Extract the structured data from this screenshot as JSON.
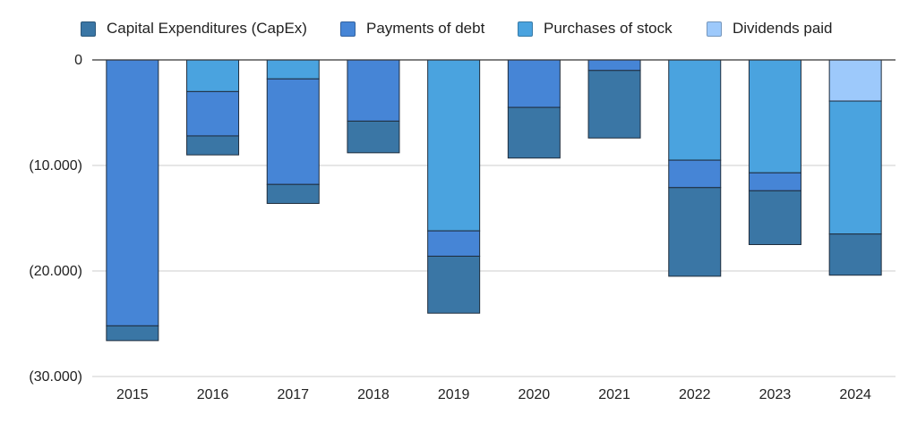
{
  "chart_data": {
    "type": "bar",
    "stacked": true,
    "categories": [
      "2015",
      "2016",
      "2017",
      "2018",
      "2019",
      "2020",
      "2021",
      "2022",
      "2023",
      "2024"
    ],
    "series": [
      {
        "name": "Dividends paid",
        "color": "#9dc9fb",
        "values": [
          0,
          0,
          0,
          0,
          0,
          0,
          0,
          0,
          0,
          -3900
        ]
      },
      {
        "name": "Purchases of stock",
        "color": "#4aa3df",
        "values": [
          0,
          -3000,
          -1800,
          0,
          -16200,
          0,
          0,
          -9500,
          -10700,
          -12600
        ]
      },
      {
        "name": "Payments of debt",
        "color": "#4685d6",
        "values": [
          -25200,
          -4200,
          -10000,
          -5800,
          -2400,
          -4500,
          -1000,
          -2600,
          -1700,
          0
        ]
      },
      {
        "name": "Capital Expenditures (CapEx)",
        "color": "#3a76a5",
        "values": [
          -1400,
          -1800,
          -1800,
          -3000,
          -5400,
          -4800,
          -6400,
          -8400,
          -5100,
          -3900
        ]
      }
    ],
    "ylim": [
      -30000,
      0
    ],
    "yticks": [
      0,
      -10000,
      -20000,
      -30000
    ],
    "ytick_labels": [
      "0",
      "(10.000)",
      "(20.000)",
      "(30.000)"
    ],
    "grid": true,
    "legend_position": "top"
  },
  "legend": [
    {
      "label": "Capital Expenditures (CapEx)",
      "color": "#3a76a5"
    },
    {
      "label": "Payments of debt",
      "color": "#4685d6"
    },
    {
      "label": "Purchases of stock",
      "color": "#4aa3df"
    },
    {
      "label": "Dividends paid",
      "color": "#9dc9fb"
    }
  ]
}
